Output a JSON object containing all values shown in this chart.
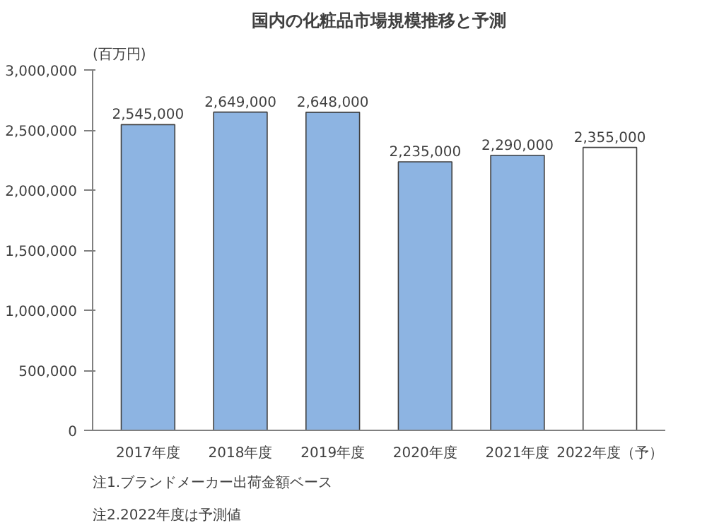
{
  "chart_data": {
    "type": "bar",
    "title": "国内の化粧品市場規模推移と予測",
    "ylabel": "(百万円)",
    "categories": [
      "2017年度",
      "2018年度",
      "2019年度",
      "2020年度",
      "2021年度",
      "2022年度（予）"
    ],
    "values": [
      2545000,
      2649000,
      2648000,
      2235000,
      2290000,
      2355000
    ],
    "colors": [
      "#8db4e2",
      "#8db4e2",
      "#8db4e2",
      "#8db4e2",
      "#8db4e2",
      "#ffffff"
    ],
    "ylim": [
      0,
      3000000
    ],
    "yticks": [
      {
        "value": 0,
        "label": "0"
      },
      {
        "value": 500000,
        "label": "500,000"
      },
      {
        "value": 1000000,
        "label": "1,000,000"
      },
      {
        "value": 1500000,
        "label": "1,500,000"
      },
      {
        "value": 2000000,
        "label": "2,000,000"
      },
      {
        "value": 2500000,
        "label": "2,500,000"
      },
      {
        "value": 3000000,
        "label": "3,000,000"
      }
    ],
    "value_labels": [
      "2,545,000",
      "2,649,000",
      "2,648,000",
      "2,235,000",
      "2,290,000",
      "2,355,000"
    ],
    "grid": false,
    "annotations": [
      "注1.ブランドメーカー出荷金額ベース",
      "注2.2022年度は予測値"
    ]
  }
}
